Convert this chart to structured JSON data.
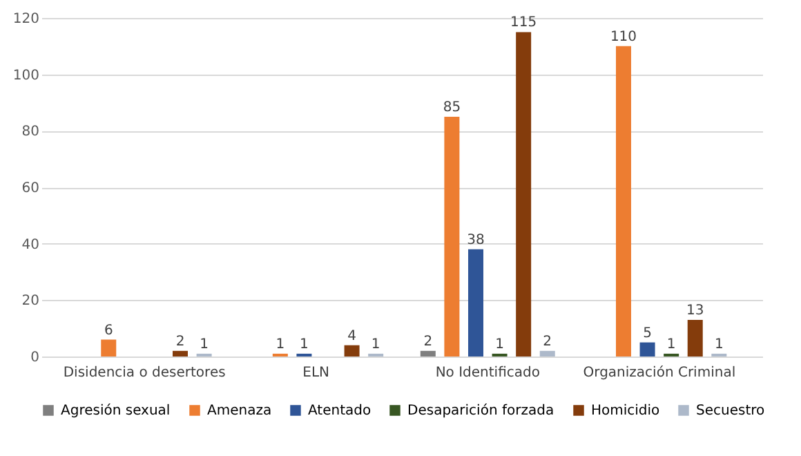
{
  "chart_data": {
    "type": "bar",
    "categories": [
      "Disidencia o desertores",
      "ELN",
      "No Identificado",
      "Organización Criminal"
    ],
    "series": [
      {
        "name": "Agresión sexual",
        "color": "#7f7f7f",
        "values": [
          null,
          null,
          2,
          null
        ]
      },
      {
        "name": "Amenaza",
        "color": "#ed7d31",
        "values": [
          6,
          1,
          85,
          110
        ]
      },
      {
        "name": "Atentado",
        "color": "#2f5597",
        "values": [
          null,
          1,
          38,
          5
        ]
      },
      {
        "name": "Desaparición forzada",
        "color": "#385723",
        "values": [
          null,
          null,
          1,
          1
        ]
      },
      {
        "name": "Homicidio",
        "color": "#843c0c",
        "values": [
          2,
          4,
          115,
          13
        ]
      },
      {
        "name": "Secuestro",
        "color": "#adb9ca",
        "values": [
          1,
          1,
          2,
          1
        ]
      }
    ],
    "ylim": [
      0,
      120
    ],
    "yticks": [
      0,
      20,
      40,
      60,
      80,
      100,
      120
    ],
    "grid": "y",
    "legend": "bottom",
    "data_labels": true
  }
}
